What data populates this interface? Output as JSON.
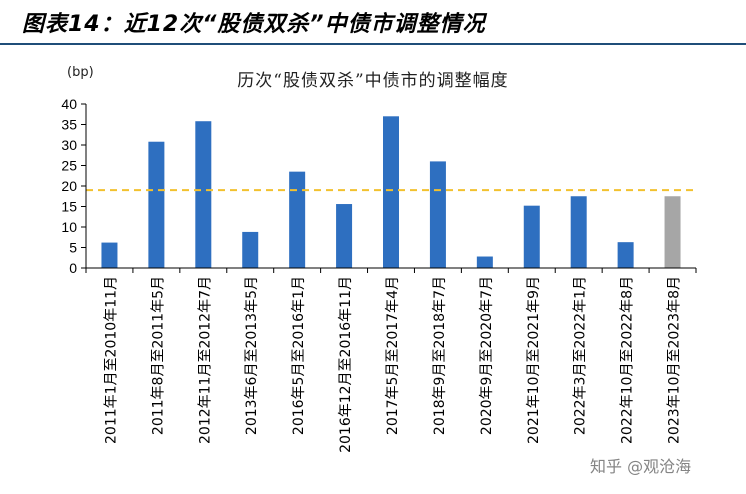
{
  "header": {
    "title": "图表14：近12次“股债双杀”中债市调整情况"
  },
  "watermark": "知乎 @观沧海",
  "colors": {
    "bar": "#2e6fc0",
    "bar_highlight": "#a6a6a6",
    "average_line": "#f2c12e",
    "header_rule": "#1f4e79"
  },
  "chart_data": {
    "type": "bar",
    "title": "历次“股债双杀”中债市的调整幅度",
    "unit_label": "(bp)",
    "ylim": [
      0,
      40
    ],
    "yticks": [
      0,
      5,
      10,
      15,
      20,
      25,
      30,
      35,
      40
    ],
    "grid": false,
    "legend": "none",
    "categories": [
      "2011年1月至2010年11月",
      "2011年8月至2011年5月",
      "2012年11月至2012年7月",
      "2013年6月至2013年5月",
      "2016年5月至2016年1月",
      "2016年12月至2016年11月",
      "2017年5月至2017年4月",
      "2018年9月至2018年7月",
      "2020年9月至2020年7月",
      "2021年10月至2021年9月",
      "2022年3月至2022年1月",
      "2022年10月至2022年8月",
      "2023年10月至2023年8月"
    ],
    "values": [
      6.2,
      30.8,
      35.8,
      8.8,
      23.5,
      15.6,
      37,
      26,
      2.8,
      15.2,
      17.5,
      6.3,
      17.5
    ],
    "highlight_index": 12,
    "reference_line": {
      "value": 19,
      "style": "dashed"
    }
  }
}
